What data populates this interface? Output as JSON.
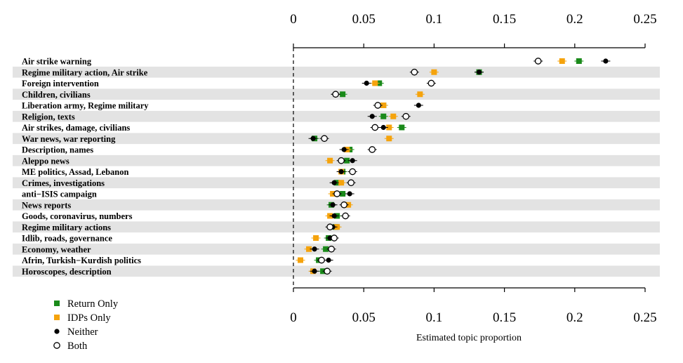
{
  "chart_data": {
    "type": "scatter",
    "title": "",
    "xlabel": "Estimated topic proportion",
    "ylabel": "",
    "xlim": [
      0,
      0.25
    ],
    "x_ticks": [
      0,
      0.05,
      0.1,
      0.15,
      0.2,
      0.25
    ],
    "x_tick_labels": [
      "0",
      "0.05",
      "0.1",
      "0.15",
      "0.2",
      "0.25"
    ],
    "reference_line": {
      "x": 0,
      "style": "dashed"
    },
    "row_shading": "alternating gray",
    "legend_position": "bottom-left",
    "categories": [
      "Air strike warning",
      "Regime military action, Air strike",
      "Foreign intervention",
      "Children, civilians",
      "Liberation army, Regime military",
      "Religion, texts",
      "Air strikes, damage, civilians",
      "War news, war reporting",
      "Description, names",
      "Aleppo news",
      "ME politics, Assad, Lebanon",
      "Crimes, investigations",
      "anti−ISIS campaign",
      "News reports",
      "Goods, coronavirus, numbers",
      "Regime military actions",
      "Idlib, roads, governance",
      "Economy, weather",
      "Afrin, Turkish−Kurdish politics",
      "Horoscopes, description"
    ],
    "series": [
      {
        "name": "Return Only",
        "color": "#1a8a1a",
        "marker": "square",
        "values": [
          0.203,
          0.132,
          0.061,
          0.035,
          0.064,
          0.064,
          0.077,
          0.015,
          0.04,
          0.038,
          0.035,
          0.031,
          0.035,
          0.027,
          0.031,
          0.03,
          0.025,
          0.023,
          0.018,
          0.021
        ]
      },
      {
        "name": "IDPs Only",
        "color": "#f5a30c",
        "marker": "square",
        "values": [
          0.191,
          0.1,
          0.058,
          0.09,
          0.064,
          0.071,
          0.068,
          0.068,
          0.038,
          0.026,
          0.034,
          0.034,
          0.028,
          0.039,
          0.026,
          0.031,
          0.016,
          0.011,
          0.005,
          0.014
        ]
      },
      {
        "name": "Neither",
        "color": "#000000",
        "marker": "filled-circle",
        "values": [
          0.222,
          0.132,
          0.052,
          0.03,
          0.089,
          0.056,
          0.064,
          0.014,
          0.036,
          0.042,
          0.034,
          0.029,
          0.04,
          0.028,
          0.029,
          0.028,
          0.026,
          0.015,
          0.025,
          0.015
        ]
      },
      {
        "name": "Both",
        "color": "#000000",
        "marker": "open-circle",
        "values": [
          0.174,
          0.086,
          0.098,
          0.03,
          0.06,
          0.08,
          0.058,
          0.022,
          0.056,
          0.034,
          0.042,
          0.041,
          0.031,
          0.036,
          0.037,
          0.026,
          0.029,
          0.027,
          0.02,
          0.024
        ]
      }
    ]
  }
}
